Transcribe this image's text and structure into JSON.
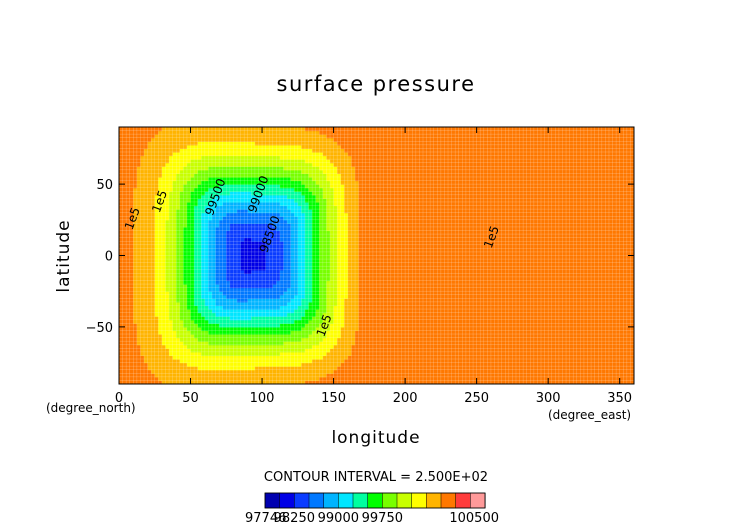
{
  "chart_data": {
    "type": "heatmap",
    "subtype": "filled-contour",
    "title": "surface pressure",
    "xlabel": "longitude",
    "ylabel": "latitude",
    "x_unit_label": "(degree_east)",
    "y_unit_label": "(degree_north)",
    "xlim": [
      0,
      360
    ],
    "ylim": [
      -90,
      90
    ],
    "x_ticks": [
      0,
      50,
      100,
      150,
      200,
      250,
      300,
      350
    ],
    "y_ticks": [
      -50,
      0,
      50
    ],
    "grid": true,
    "contour_interval_text": "CONTOUR INTERVAL = 2.500E+02",
    "contour_interval": 250,
    "field_model": {
      "minimum": 97746,
      "background": 100600,
      "low_center": [
        95,
        0
      ],
      "high_center": [
        300,
        0
      ]
    },
    "contour_levels": [
      98000,
      98250,
      98500,
      98750,
      99000,
      99250,
      99500,
      99750,
      100000,
      100250,
      100500
    ],
    "contour_labels": [
      {
        "text": "1e5",
        "lon": 12,
        "lat": 25
      },
      {
        "text": "1e5",
        "lon": 31,
        "lat": 37
      },
      {
        "text": "99500",
        "lon": 70,
        "lat": 40
      },
      {
        "text": "99000",
        "lon": 100,
        "lat": 42
      },
      {
        "text": "98500",
        "lon": 108,
        "lat": 14
      },
      {
        "text": "1e5",
        "lon": 146,
        "lat": -50
      },
      {
        "text": "1e5",
        "lon": 263,
        "lat": 12
      }
    ],
    "colorbar": {
      "colors": [
        "#0000b0",
        "#0000e6",
        "#0a3cff",
        "#0078ff",
        "#00b4ff",
        "#00e6ff",
        "#00ffa0",
        "#00ff00",
        "#78ff00",
        "#c8ff00",
        "#ffff00",
        "#ffb400",
        "#ff7800",
        "#ff3c3c",
        "#ff9a9a"
      ],
      "tick_labels": [
        "97746",
        "98250",
        "99000",
        "99750",
        "100500"
      ],
      "tick_positions": [
        0,
        2,
        5,
        8,
        11
      ]
    }
  }
}
